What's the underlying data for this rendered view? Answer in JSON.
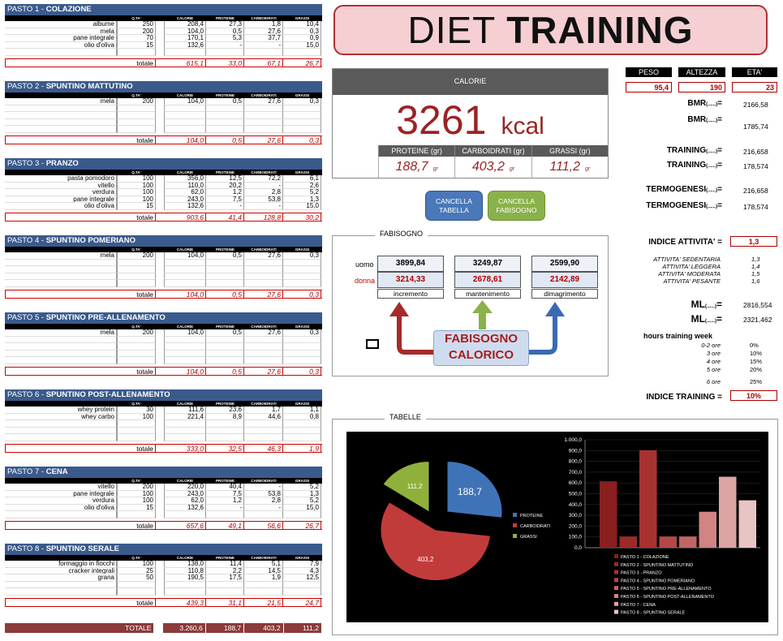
{
  "columns": [
    "Q.TA'",
    "CALORIE",
    "PROTEINE",
    "CARBOIDRATI",
    "GRASSI"
  ],
  "meals": [
    {
      "num": "PASTO 1 - ",
      "name": "COLAZIONE",
      "rows": [
        [
          "albume",
          "250",
          "208,4",
          "27,3",
          "1,8",
          "10,4"
        ],
        [
          "mela",
          "200",
          "104,0",
          "0,5",
          "27,6",
          "0,3"
        ],
        [
          "pane integrale",
          "70",
          "170,1",
          "5,3",
          "37,7",
          "0,9"
        ],
        [
          "olio d'oliva",
          "15",
          "132,6",
          "-",
          "-",
          "15,0"
        ],
        [
          "",
          "",
          "",
          "",
          "",
          ""
        ]
      ],
      "total_label": "totale",
      "totals": [
        "615,1",
        "33,0",
        "67,1",
        "26,7"
      ]
    },
    {
      "num": "PASTO 2 - ",
      "name": "SPUNTINO MATTUTINO",
      "rows": [
        [
          "mela",
          "200",
          "104,0",
          "0,5",
          "27,6",
          "0,3"
        ],
        [
          "",
          "",
          "",
          "",
          "",
          ""
        ],
        [
          "",
          "",
          "",
          "",
          "",
          ""
        ],
        [
          "",
          "",
          "",
          "",
          "",
          ""
        ],
        [
          "",
          "",
          "",
          "",
          "",
          ""
        ]
      ],
      "total_label": "totale",
      "totals": [
        "104,0",
        "0,5",
        "27,6",
        "0,3"
      ]
    },
    {
      "num": "PASTO 3 - ",
      "name": "PRANZO",
      "rows": [
        [
          "pasta pomodoro",
          "100",
          "356,0",
          "12,5",
          "72,2",
          "6,1"
        ],
        [
          "vitello",
          "100",
          "110,0",
          "20,2",
          "-",
          "2,6"
        ],
        [
          "verdura",
          "100",
          "62,0",
          "1,2",
          "2,8",
          "5,2"
        ],
        [
          "pane integrale",
          "100",
          "243,0",
          "7,5",
          "53,8",
          "1,3"
        ],
        [
          "olio d'oliva",
          "15",
          "132,6",
          "-",
          "-",
          "15,0"
        ]
      ],
      "total_label": "totale",
      "totals": [
        "903,6",
        "41,4",
        "128,8",
        "30,2"
      ]
    },
    {
      "num": "PASTO 4 - ",
      "name": "SPUNTINO POMERIANO",
      "rows": [
        [
          "mela",
          "200",
          "104,0",
          "0,5",
          "27,6",
          "0,3"
        ],
        [
          "",
          "",
          "",
          "",
          "",
          ""
        ],
        [
          "",
          "",
          "",
          "",
          "",
          ""
        ],
        [
          "",
          "",
          "",
          "",
          "",
          ""
        ],
        [
          "",
          "",
          "",
          "",
          "",
          ""
        ]
      ],
      "total_label": "totale",
      "totals": [
        "104,0",
        "0,5",
        "27,6",
        "0,3"
      ]
    },
    {
      "num": "PASTO 5 - ",
      "name": "SPUNTINO PRE-ALLENAMENTO",
      "rows": [
        [
          "mela",
          "200",
          "104,0",
          "0,5",
          "27,6",
          "0,3"
        ],
        [
          "",
          "",
          "",
          "",
          "",
          ""
        ],
        [
          "",
          "",
          "",
          "",
          "",
          ""
        ],
        [
          "",
          "",
          "",
          "",
          "",
          ""
        ],
        [
          "",
          "",
          "",
          "",
          "",
          ""
        ]
      ],
      "total_label": "totale",
      "totals": [
        "104,0",
        "0,5",
        "27,6",
        "0,3"
      ]
    },
    {
      "num": "PASTO 6 - ",
      "name": "SPUNTINO POST-ALLENAMENTO",
      "rows": [
        [
          "whey protein",
          "30",
          "111,6",
          "23,6",
          "1,7",
          "1,1"
        ],
        [
          "whey carbo",
          "100",
          "221,4",
          "8,9",
          "44,6",
          "0,8"
        ],
        [
          "",
          "",
          "",
          "",
          "",
          ""
        ],
        [
          "",
          "",
          "",
          "",
          "",
          ""
        ],
        [
          "",
          "",
          "",
          "",
          "",
          ""
        ]
      ],
      "total_label": "totale",
      "totals": [
        "333,0",
        "32,5",
        "46,3",
        "1,9"
      ]
    },
    {
      "num": "PASTO 7 - ",
      "name": "CENA",
      "rows": [
        [
          "vitello",
          "200",
          "220,0",
          "40,4",
          "-",
          "5,2"
        ],
        [
          "pane integrale",
          "100",
          "243,0",
          "7,5",
          "53,8",
          "1,3"
        ],
        [
          "verdura",
          "100",
          "62,0",
          "1,2",
          "2,8",
          "5,2"
        ],
        [
          "olio d'oliva",
          "15",
          "132,6",
          "-",
          "-",
          "15,0"
        ],
        [
          "",
          "",
          "",
          "",
          "",
          ""
        ]
      ],
      "total_label": "totale",
      "totals": [
        "657,6",
        "49,1",
        "56,6",
        "26,7"
      ]
    },
    {
      "num": "PASTO 8 - ",
      "name": "SPUNTINO SERALE",
      "rows": [
        [
          "formaggio in fiocchi",
          "100",
          "138,0",
          "11,4",
          "5,1",
          "7,9"
        ],
        [
          "cracker integrali",
          "25",
          "110,8",
          "2,2",
          "14,5",
          "4,3"
        ],
        [
          "grana",
          "50",
          "190,5",
          "17,5",
          "1,9",
          "12,5"
        ],
        [
          "",
          "",
          "",
          "",
          "",
          ""
        ],
        [
          "",
          "",
          "",
          "",
          "",
          ""
        ]
      ],
      "total_label": "totale",
      "totals": [
        "439,3",
        "31,1",
        "21,5",
        "24,7"
      ]
    }
  ],
  "grand_total": {
    "label": "TOTALE",
    "values": [
      "3.260,6",
      "188,7",
      "403,2",
      "111,2"
    ]
  },
  "title": {
    "light": "DIET ",
    "bold": "TRAINING"
  },
  "calories": {
    "header": "CALORIE",
    "value": "3261",
    "unit": "kcal",
    "macro_headers": [
      "PROTEINE (gr)",
      "CARBOIDRATI (gr)",
      "GRASSI (gr)"
    ],
    "macro_values": [
      "188,7",
      "403,2",
      "111,2"
    ],
    "macro_unit": "gr"
  },
  "buttons": {
    "cancel_table": "CANCELLA TABELLA",
    "cancel_needs": "CANCELLA FABISOGNO"
  },
  "fabisogno": {
    "label": "FABISOGNO",
    "uomo": "uomo",
    "donna": "donna",
    "uomo_values": [
      "3899,84",
      "3249,87",
      "2599,90"
    ],
    "donna_values": [
      "3214,33",
      "2678,61",
      "2142,89"
    ],
    "captions": [
      "incremento",
      "mantenimento",
      "dimagrimento"
    ],
    "center_line1": "FABISOGNO",
    "center_line2": "CALORICO"
  },
  "stats": {
    "headers": [
      "PESO",
      "ALTEZZA",
      "ETA'"
    ],
    "values": [
      "95,4",
      "190",
      "23"
    ],
    "labels": [
      {
        "label": "BMR",
        "sub": "(......)",
        "value": "2166,58"
      },
      {
        "label": "BMR",
        "sub": "(......)",
        "value": "1785,74"
      },
      {
        "label": "TRAINING",
        "sub": "(......)",
        "value": "216,658"
      },
      {
        "label": "TRAINING",
        "sub": "(......)",
        "value": "178,574"
      },
      {
        "label": "TERMOGENESI",
        "sub": "(......)",
        "value": "216,658"
      },
      {
        "label": "TERMOGENESI",
        "sub": "(......)",
        "value": "178,574"
      }
    ],
    "activity_label": "INDICE ATTIVITA' =",
    "activity_value": "1,3",
    "activity_levels": [
      [
        "ATTIVITA' SEDENTARIA",
        "1,3"
      ],
      [
        "ATTIVITA' LEGGERA",
        "1,4"
      ],
      [
        "ATTIVITA' MODERATA",
        "1,5"
      ],
      [
        "ATTIVITA' PESANTE",
        "1,6"
      ]
    ],
    "ml": [
      {
        "label": "ML",
        "sub": "(......)",
        "value": "2816,554"
      },
      {
        "label": "ML",
        "sub": "(......)",
        "value": "2321,462"
      }
    ],
    "hours_label": "hours training week",
    "hours": [
      [
        "0-2 ore",
        "0%"
      ],
      [
        "3 ore",
        "10%"
      ],
      [
        "4 ore",
        "15%"
      ],
      [
        "5 ore",
        "20%"
      ],
      [
        "6 ore",
        "25%"
      ]
    ],
    "training_label": "INDICE TRAINING =",
    "training_value": "10%"
  },
  "tabelle_label": "TABELLE",
  "chart_data": [
    {
      "type": "pie",
      "slices": [
        {
          "label": "PROTEINE",
          "value": 188.7,
          "display": "188,7",
          "color": "#3f73b8"
        },
        {
          "label": "CARBOIDRATI",
          "value": 403.2,
          "display": "403,2",
          "color": "#c23b3b"
        },
        {
          "label": "GRASSI",
          "value": 111.2,
          "display": "111,2",
          "color": "#8fb13b"
        }
      ]
    },
    {
      "type": "bar",
      "ylim": [
        0,
        1000
      ],
      "yticks": [
        "0,0",
        "100,0",
        "200,0",
        "300,0",
        "400,0",
        "500,0",
        "600,0",
        "700,0",
        "800,0",
        "900,0",
        "1.000,0"
      ],
      "categories": [
        "PASTO 1 - COLAZIONE",
        "PASTO 2 - SPUNTINO MATTUTINO",
        "PASTO 3 - PRANZO",
        "PASTO 4 - SPUNTINO POMERIANO",
        "PASTO 5 - SPUNTINO PRE-ALLENAMENTO",
        "PASTO 6 - SPUNTINO POST-ALLENAMENTO",
        "PASTO 7 - CENA",
        "PASTO 8 - SPUNTINO SERALE"
      ],
      "values": [
        615.1,
        104.0,
        903.6,
        104.0,
        104.0,
        333.0,
        657.6,
        439.3
      ],
      "colors": [
        "#8a1f1f",
        "#9c2a2a",
        "#a83232",
        "#b44848",
        "#c06464",
        "#d08484",
        "#dca4a4",
        "#e8c4c4"
      ]
    }
  ]
}
